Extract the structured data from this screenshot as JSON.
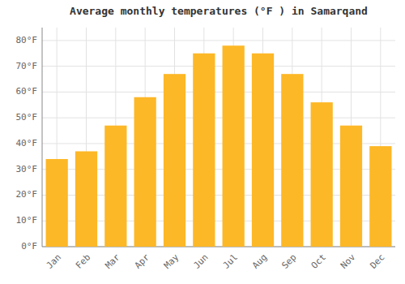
{
  "chart_data": {
    "type": "bar",
    "title": "Average monthly temperatures (°F ) in Samarqand",
    "categories": [
      "Jan",
      "Feb",
      "Mar",
      "Apr",
      "May",
      "Jun",
      "Jul",
      "Aug",
      "Sep",
      "Oct",
      "Nov",
      "Dec"
    ],
    "values": [
      34,
      37,
      47,
      58,
      67,
      75,
      78,
      75,
      67,
      56,
      47,
      39
    ],
    "color": "#FDB827",
    "ylim": [
      0,
      85
    ],
    "yticks": [
      {
        "value": 0,
        "label": "0°F"
      },
      {
        "value": 10,
        "label": "10°F"
      },
      {
        "value": 20,
        "label": "20°F"
      },
      {
        "value": 30,
        "label": "30°F"
      },
      {
        "value": 40,
        "label": "40°F"
      },
      {
        "value": 50,
        "label": "50°F"
      },
      {
        "value": 60,
        "label": "60°F"
      },
      {
        "value": 70,
        "label": "70°F"
      },
      {
        "value": 80,
        "label": "80°F"
      }
    ],
    "grid": true
  }
}
